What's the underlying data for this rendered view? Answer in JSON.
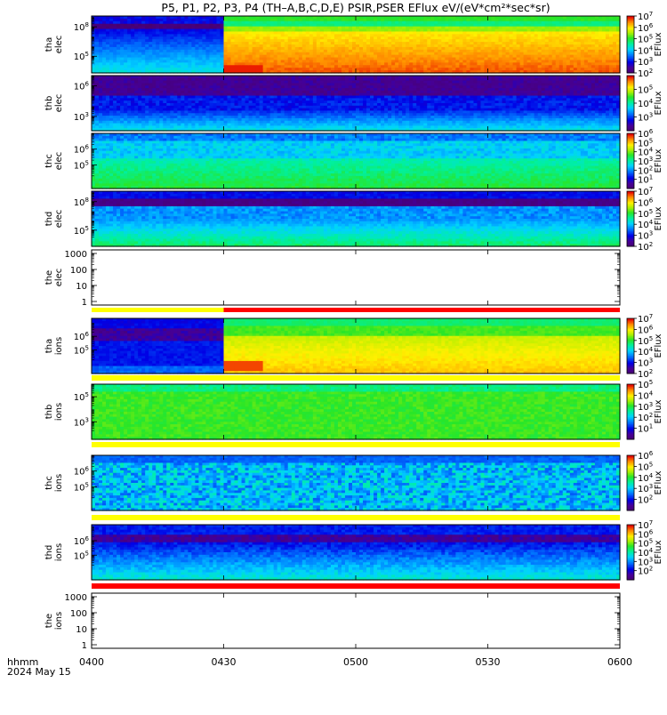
{
  "title": "P5, P1, P2, P3, P4 (TH–A,B,C,D,E) PSIR,PSER EFlux eV/(eV*cm²*sec*sr)",
  "time_axis": {
    "label_line1": "hhmm",
    "label_line2": "2024 May 15",
    "ticks": [
      "0400",
      "0430",
      "0500",
      "0530",
      "0600"
    ]
  },
  "colorbar_label": "EFlux",
  "chart_data": [
    {
      "type": "heatmap",
      "name": "tha elec",
      "ylabel": [
        "tha",
        "elec"
      ],
      "ylog_ticks": [
        {
          "exp": 8,
          "label": "10"
        },
        {
          "exp": 5,
          "label": "10"
        }
      ],
      "ymin_exp": 3.3,
      "ymax_exp": 9.1,
      "colorbar": {
        "min_exp": 2,
        "max_exp": 7,
        "tick_exps": [
          7,
          6,
          5,
          4,
          3,
          2
        ]
      },
      "regime": "tha"
    },
    {
      "type": "heatmap",
      "name": "thb elec",
      "ylabel": [
        "thb",
        "elec"
      ],
      "ylog_ticks": [
        {
          "exp": 6,
          "label": "10"
        },
        {
          "exp": 3,
          "label": "10"
        }
      ],
      "ymin_exp": 1.6,
      "ymax_exp": 7.0,
      "colorbar": {
        "min_exp": 2,
        "max_exp": 6,
        "tick_exps": [
          5,
          4,
          3
        ]
      },
      "regime": "thb"
    },
    {
      "type": "heatmap",
      "name": "thc elec",
      "ylabel": [
        "thc",
        "elec"
      ],
      "ylog_ticks": [
        {
          "exp": 6,
          "label": "10"
        },
        {
          "exp": 5,
          "label": "10"
        }
      ],
      "ymin_exp": 3.5,
      "ymax_exp": 7.0,
      "colorbar": {
        "min_exp": 0,
        "max_exp": 6,
        "tick_exps": [
          6,
          5,
          4,
          3,
          2,
          1
        ]
      },
      "regime": "thc"
    },
    {
      "type": "heatmap",
      "name": "thd elec",
      "ylabel": [
        "thd",
        "elec"
      ],
      "ylog_ticks": [
        {
          "exp": 8,
          "label": "10"
        },
        {
          "exp": 5,
          "label": "10"
        }
      ],
      "ymin_exp": 3.3,
      "ymax_exp": 9.1,
      "colorbar": {
        "min_exp": 2,
        "max_exp": 7,
        "tick_exps": [
          7,
          6,
          5,
          4,
          3,
          2
        ]
      },
      "regime": "thd"
    },
    {
      "type": "empty",
      "name": "the elec",
      "ylabel": [
        "the",
        "elec"
      ],
      "ylin_ticks": [
        "1000",
        "100",
        "10",
        "1"
      ]
    },
    {
      "type": "heatmap",
      "name": "tha ions",
      "ylabel": [
        "tha",
        "ions"
      ],
      "ylog_ticks": [
        {
          "exp": 6,
          "label": "10"
        },
        {
          "exp": 5,
          "label": "10"
        }
      ],
      "ymin_exp": 3.3,
      "ymax_exp": 7.3,
      "colorbar": {
        "min_exp": 2,
        "max_exp": 7,
        "tick_exps": [
          7,
          6,
          5,
          4,
          3,
          2
        ]
      },
      "regime": "tha_i"
    },
    {
      "type": "heatmap",
      "name": "thb ions",
      "ylabel": [
        "thb",
        "ions"
      ],
      "ylog_ticks": [
        {
          "exp": 5,
          "label": "10"
        },
        {
          "exp": 3,
          "label": "10"
        }
      ],
      "ymin_exp": 1.6,
      "ymax_exp": 6.0,
      "colorbar": {
        "min_exp": 0,
        "max_exp": 5,
        "tick_exps": [
          5,
          4,
          3,
          2,
          1
        ]
      },
      "regime": "thb_i"
    },
    {
      "type": "heatmap",
      "name": "thc ions",
      "ylabel": [
        "thc",
        "ions"
      ],
      "ylog_ticks": [
        {
          "exp": 6,
          "label": "10"
        },
        {
          "exp": 5,
          "label": "10"
        }
      ],
      "ymin_exp": 3.5,
      "ymax_exp": 7.0,
      "colorbar": {
        "min_exp": 1,
        "max_exp": 6,
        "tick_exps": [
          6,
          5,
          4,
          3,
          2
        ]
      },
      "regime": "thc_i"
    },
    {
      "type": "heatmap",
      "name": "thd ions",
      "ylabel": [
        "thd",
        "ions"
      ],
      "ylog_ticks": [
        {
          "exp": 6,
          "label": "10"
        },
        {
          "exp": 5,
          "label": "10"
        }
      ],
      "ymin_exp": 3.3,
      "ymax_exp": 7.1,
      "colorbar": {
        "min_exp": 1,
        "max_exp": 7,
        "tick_exps": [
          7,
          6,
          5,
          4,
          3,
          2
        ]
      },
      "regime": "thd_i"
    },
    {
      "type": "empty",
      "name": "the ions",
      "ylabel": [
        "the",
        "ions"
      ],
      "ylin_ticks": [
        "1000",
        "100",
        "10",
        "1"
      ]
    }
  ],
  "mode_bars": [
    {
      "after": "tha elec",
      "segments": []
    },
    {
      "after": "thb elec",
      "segments": []
    },
    {
      "after": "thc elec",
      "segments": []
    },
    {
      "after": "thd elec",
      "segments": []
    },
    {
      "after": "the elec",
      "segments": [
        {
          "from": "0400",
          "to": "0430",
          "color": "#ffff00"
        },
        {
          "from": "0430",
          "to": "0600",
          "color": "#ff0000"
        }
      ]
    },
    {
      "after": "tha ions",
      "segments": [
        {
          "from": "0400",
          "to": "0600",
          "color": "#ffff00"
        }
      ]
    },
    {
      "after": "thb ions",
      "segments": [
        {
          "from": "0400",
          "to": "0600",
          "color": "#ffff00"
        }
      ]
    },
    {
      "after": "thc ions",
      "segments": [
        {
          "from": "0400",
          "to": "0600",
          "color": "#ffff00"
        }
      ]
    },
    {
      "after": "thd ions",
      "segments": [
        {
          "from": "0400",
          "to": "0600",
          "color": "#ff0000"
        }
      ]
    }
  ]
}
